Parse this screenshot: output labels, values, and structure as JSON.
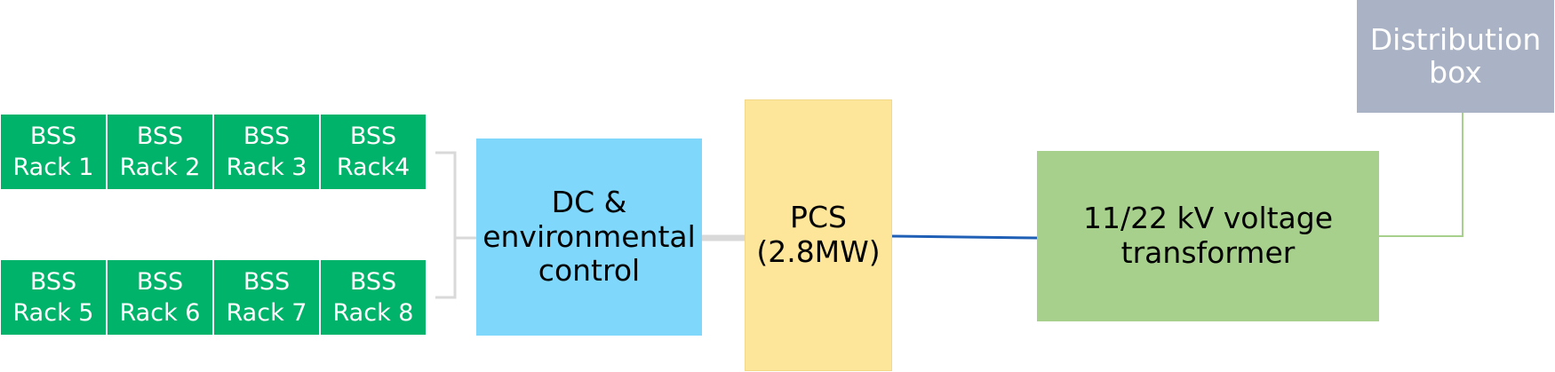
{
  "diagram": {
    "bss_racks_top": [
      {
        "line1": "BSS",
        "line2": "Rack 1"
      },
      {
        "line1": "BSS",
        "line2": "Rack 2"
      },
      {
        "line1": "BSS",
        "line2": "Rack 3"
      },
      {
        "line1": "BSS",
        "line2": "Rack4"
      }
    ],
    "bss_racks_bottom": [
      {
        "line1": "BSS",
        "line2": "Rack 5"
      },
      {
        "line1": "BSS",
        "line2": "Rack 6"
      },
      {
        "line1": "BSS",
        "line2": "Rack 7"
      },
      {
        "line1": "BSS",
        "line2": "Rack 8"
      }
    ],
    "dc_control": {
      "line1": "DC &",
      "line2": "environmental",
      "line3": "control"
    },
    "pcs": {
      "line1": "PCS",
      "line2": "(2.8MW)"
    },
    "transformer": {
      "line1": "11/22 kV voltage",
      "line2": "transformer"
    },
    "distribution_box": {
      "line1": "Distribution",
      "line2": "box"
    }
  },
  "colors": {
    "rack_green": "#00b36b",
    "dc_blue": "#7fd8fb",
    "pcs_yellow": "#fde59a",
    "transformer_green": "#a8d08d",
    "distbox_gray": "#aab3c6",
    "line_gray": "#d9d9d9",
    "line_blue": "#1f5fb5",
    "line_green": "#a8d08d"
  }
}
